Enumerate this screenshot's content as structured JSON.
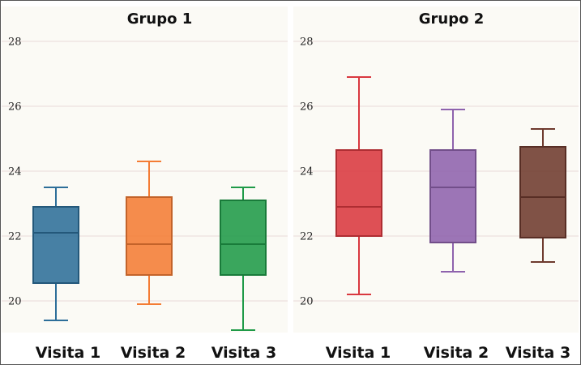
{
  "chart_data": [
    {
      "type": "box",
      "title": "Grupo 1",
      "categories": [
        "Visita 1",
        "Visita 2",
        "Visita 3"
      ],
      "yticks": [
        20,
        22,
        24,
        26,
        28
      ],
      "ylim": [
        19,
        28.8
      ],
      "grid": true,
      "series": [
        {
          "category": "Visita 1",
          "min": 19.4,
          "q1": 20.55,
          "median": 22.1,
          "q3": 22.9,
          "max": 23.5,
          "color": "#2d6e99"
        },
        {
          "category": "Visita 2",
          "min": 19.9,
          "q1": 20.8,
          "median": 21.75,
          "q3": 23.2,
          "max": 24.3,
          "color": "#f47c34"
        },
        {
          "category": "Visita 3",
          "min": 19.1,
          "q1": 20.8,
          "median": 21.75,
          "q3": 23.1,
          "max": 23.5,
          "color": "#1f9a48"
        }
      ]
    },
    {
      "type": "box",
      "title": "Grupo 2",
      "categories": [
        "Visita 1",
        "Visita 2",
        "Visita 3"
      ],
      "yticks": [
        20,
        22,
        24,
        26,
        28
      ],
      "ylim": [
        19,
        28.8
      ],
      "grid": true,
      "series": [
        {
          "category": "Visita 1",
          "min": 20.2,
          "q1": 22.0,
          "median": 22.9,
          "q3": 24.65,
          "max": 26.9,
          "color": "#d9383f"
        },
        {
          "category": "Visita 2",
          "min": 20.9,
          "q1": 21.8,
          "median": 23.5,
          "q3": 24.65,
          "max": 25.9,
          "color": "#8e62ad"
        },
        {
          "category": "Visita 3",
          "min": 21.2,
          "q1": 21.95,
          "median": 23.2,
          "q3": 24.75,
          "max": 25.3,
          "color": "#6e3a2e"
        }
      ]
    }
  ]
}
